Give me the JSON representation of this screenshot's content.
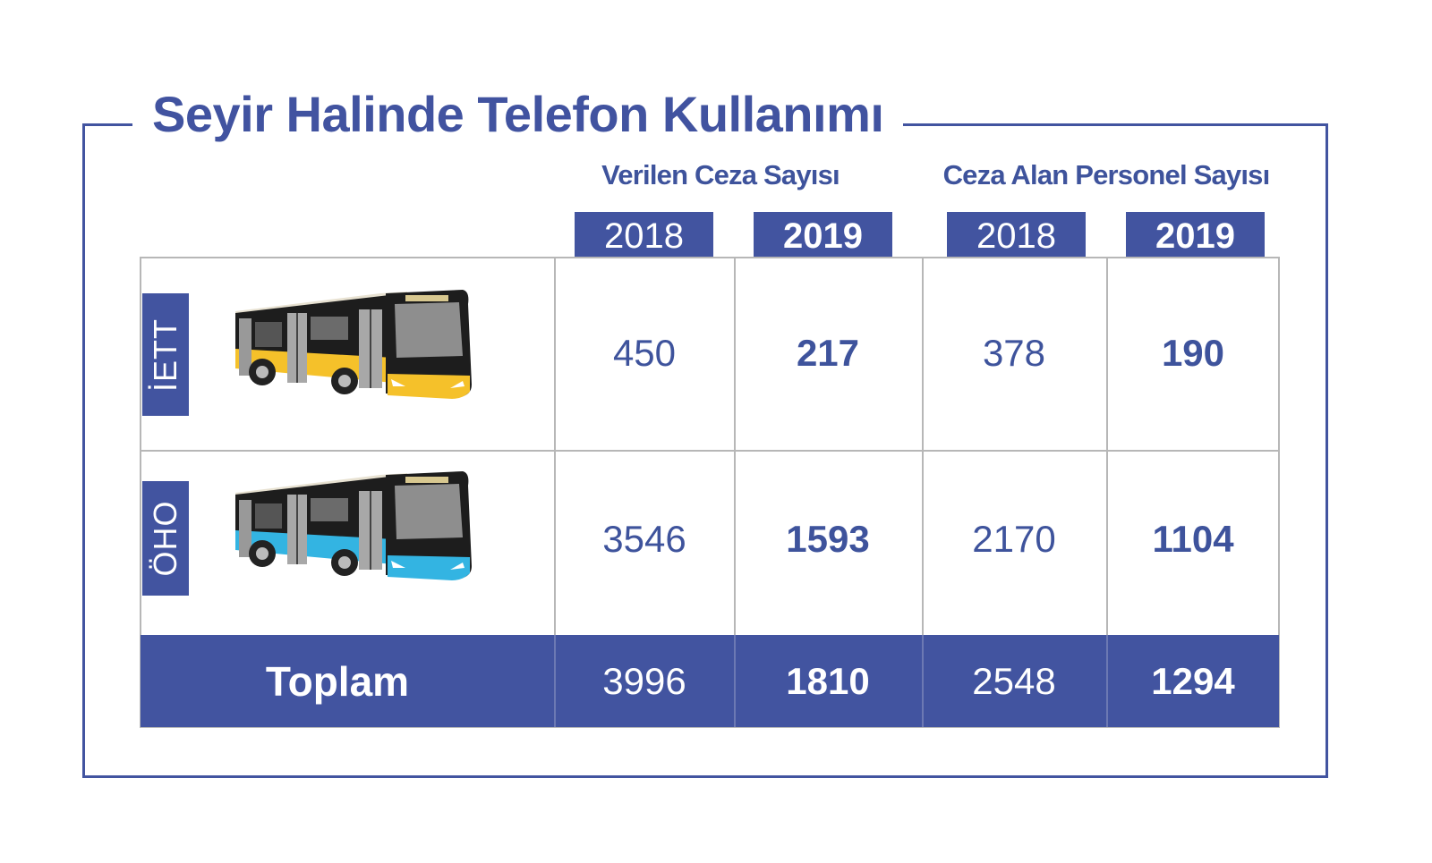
{
  "chart_data": {
    "type": "table",
    "title": "Seyir Halinde Telefon Kullanımı",
    "column_groups": [
      {
        "label": "Verilen Ceza Sayısı",
        "years": [
          "2018",
          "2019"
        ]
      },
      {
        "label": "Ceza Alan Personel Sayısı",
        "years": [
          "2018",
          "2019"
        ]
      }
    ],
    "rows": [
      {
        "label": "İETT",
        "values": [
          450,
          217,
          378,
          190
        ],
        "bus_color": "#f5c12a"
      },
      {
        "label": "ÖHO",
        "values": [
          3546,
          1593,
          2170,
          1104
        ],
        "bus_color": "#33b4e2"
      }
    ],
    "total": {
      "label": "Toplam",
      "values": [
        3996,
        1810,
        2548,
        1294
      ]
    }
  },
  "colors": {
    "primary": "#4254a0",
    "grid": "#b7b7b7",
    "text": "#3e539c"
  },
  "icons": [
    "iett-bus-icon",
    "oho-bus-icon"
  ]
}
